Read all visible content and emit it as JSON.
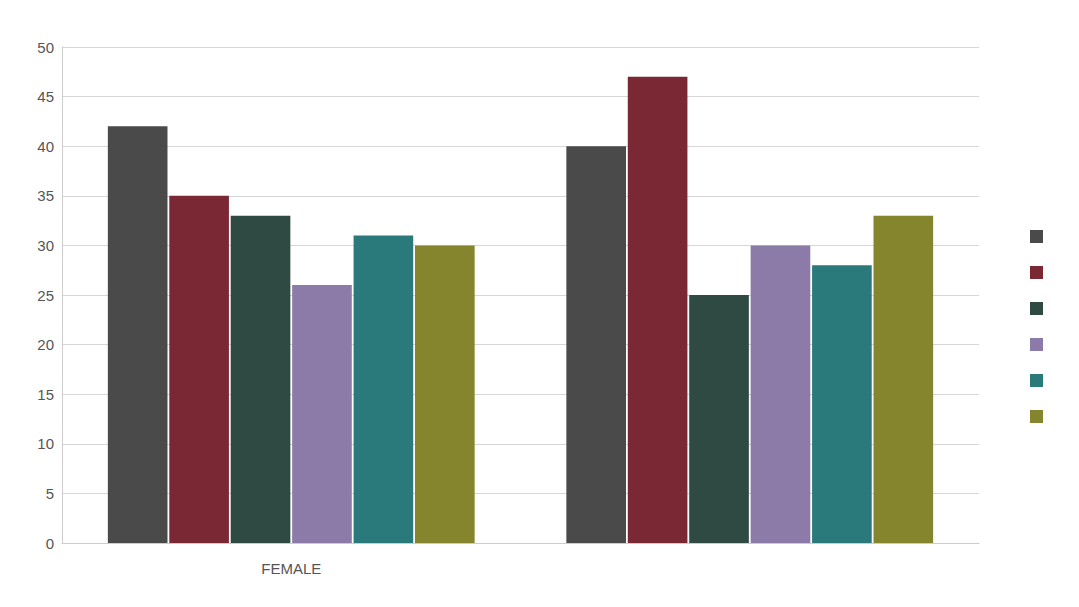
{
  "chart_data": {
    "type": "bar",
    "categories": [
      "FEMALE",
      null
    ],
    "series": [
      {
        "color": "#4a4a4a",
        "values": [
          42,
          40
        ]
      },
      {
        "color": "#7a2833",
        "values": [
          35,
          47
        ]
      },
      {
        "color": "#2e4a42",
        "values": [
          33,
          25
        ]
      },
      {
        "color": "#8c7aa8",
        "values": [
          26,
          30
        ]
      },
      {
        "color": "#2a7a7c",
        "values": [
          31,
          28
        ]
      },
      {
        "color": "#85852e",
        "values": [
          30,
          33
        ]
      }
    ],
    "ylim": [
      0,
      50
    ],
    "yticks": [
      0,
      5,
      10,
      15,
      20,
      25,
      30,
      35,
      40,
      45,
      50
    ],
    "grid": true,
    "legend": "right"
  }
}
